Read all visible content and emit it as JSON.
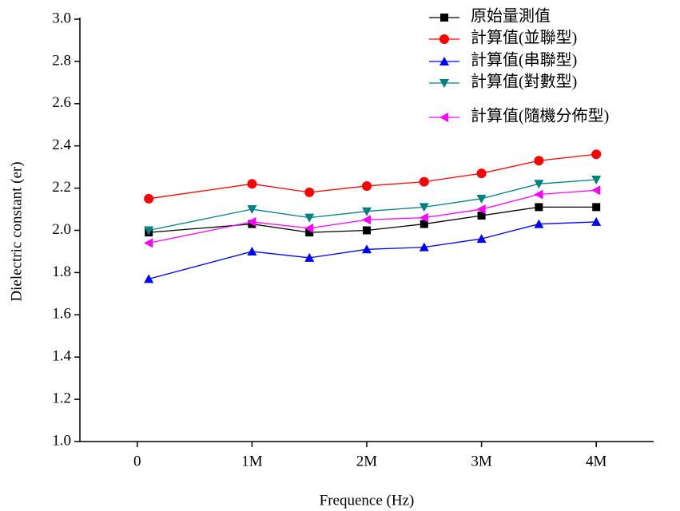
{
  "chart_data": {
    "type": "line",
    "xlabel": "Frequence (Hz)",
    "ylabel": "Dielectric constant (er)",
    "x": [
      100000,
      1000000,
      1500000,
      2000000,
      2500000,
      3000000,
      3500000,
      4000000
    ],
    "series": [
      {
        "name": "原始量測值",
        "color": "#000000",
        "marker": "square",
        "values": [
          1.99,
          2.03,
          1.99,
          2.0,
          2.03,
          2.07,
          2.11,
          2.11
        ]
      },
      {
        "name": "計算值(並聯型)",
        "color": "#ff0000",
        "marker": "circle",
        "values": [
          2.15,
          2.22,
          2.18,
          2.21,
          2.23,
          2.27,
          2.33,
          2.36
        ]
      },
      {
        "name": "計算值(串聯型)",
        "color": "#0000ff",
        "marker": "triangle-up",
        "values": [
          1.77,
          1.9,
          1.87,
          1.91,
          1.92,
          1.96,
          2.03,
          2.04
        ]
      },
      {
        "name": "計算值(對數型)",
        "color": "#008080",
        "marker": "triangle-down",
        "values": [
          2.0,
          2.1,
          2.06,
          2.09,
          2.11,
          2.15,
          2.22,
          2.24
        ]
      },
      {
        "name": "計算值(隨機分佈型)",
        "color": "#ff00ff",
        "marker": "triangle-left",
        "values": [
          1.94,
          2.04,
          2.01,
          2.05,
          2.06,
          2.1,
          2.17,
          2.19
        ]
      }
    ],
    "xlim": [
      -500000,
      4500000
    ],
    "xticks": [
      0,
      {
        "value": 1000000,
        "label": "1M"
      },
      {
        "value": 2000000,
        "label": "2M"
      },
      {
        "value": 3000000,
        "label": "3M"
      },
      {
        "value": 4000000,
        "label": "4M"
      }
    ],
    "ylim": [
      1,
      3
    ],
    "yticks": [
      {
        "value": 1,
        "label": "1.0"
      },
      1.2,
      1.4,
      1.6,
      1.8,
      {
        "value": 2,
        "label": "2.0"
      },
      2.2,
      2.4,
      2.6,
      2.8,
      {
        "value": 3,
        "label": "3.0"
      }
    ],
    "grid": false,
    "legend": "top-right"
  }
}
